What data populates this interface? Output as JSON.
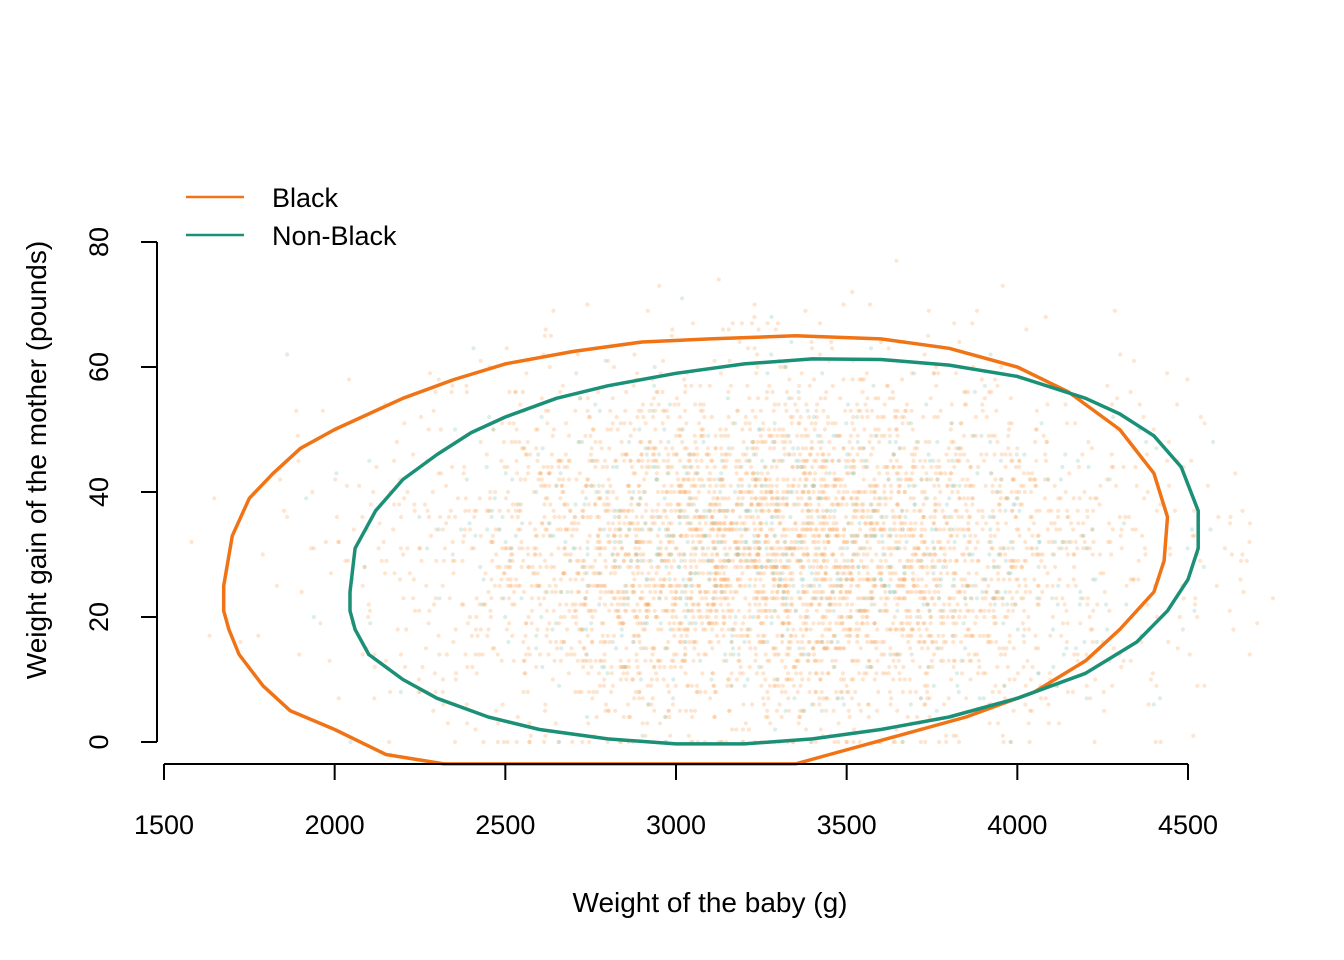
{
  "chart_data": {
    "type": "scatter",
    "title": "",
    "xlabel": "Weight of the baby (g)",
    "ylabel": "Weight gain of the mother (pounds)",
    "xlim": [
      1500,
      4500
    ],
    "ylim": [
      0,
      80
    ],
    "xticks": [
      1500,
      2000,
      2500,
      3000,
      3500,
      4000,
      4500
    ],
    "yticks": [
      0,
      20,
      40,
      60,
      80
    ],
    "grid": false,
    "legend_position": "top-left",
    "series": [
      {
        "name": "Black",
        "color": "#f07416",
        "point_color": "#fdae6b",
        "ellipse": {
          "center": [
            3065,
            30.5
          ],
          "points": [
            [
              1675,
              25
            ],
            [
              1700,
              33
            ],
            [
              1750,
              39
            ],
            [
              1820,
              43
            ],
            [
              1900,
              47
            ],
            [
              2000,
              50
            ],
            [
              2100,
              52.5
            ],
            [
              2200,
              55
            ],
            [
              2350,
              58
            ],
            [
              2500,
              60.5
            ],
            [
              2700,
              62.5
            ],
            [
              2900,
              64
            ],
            [
              3100,
              64.5
            ],
            [
              3350,
              65
            ],
            [
              3600,
              64.5
            ],
            [
              3800,
              63
            ],
            [
              4000,
              60
            ],
            [
              4150,
              56
            ],
            [
              4300,
              50
            ],
            [
              4400,
              43
            ],
            [
              4440,
              36
            ],
            [
              4430,
              29
            ],
            [
              4400,
              24
            ],
            [
              4300,
              18
            ],
            [
              4200,
              13
            ],
            [
              4050,
              8
            ],
            [
              3850,
              4
            ],
            [
              3650,
              1
            ],
            [
              3450,
              -2
            ],
            [
              3350,
              -3.5
            ],
            [
              2320,
              -3.5
            ],
            [
              2150,
              -2
            ],
            [
              2000,
              2
            ],
            [
              1870,
              5
            ],
            [
              1790,
              9
            ],
            [
              1720,
              14
            ],
            [
              1690,
              18
            ],
            [
              1675,
              21
            ]
          ]
        }
      },
      {
        "name": "Non-Black",
        "color": "#1b9077",
        "point_color": "#8fc9bb",
        "ellipse": {
          "center": [
            3290,
            30.5
          ],
          "points": [
            [
              2045,
              24
            ],
            [
              2060,
              31
            ],
            [
              2120,
              37
            ],
            [
              2200,
              42
            ],
            [
              2300,
              46
            ],
            [
              2400,
              49.5
            ],
            [
              2500,
              52
            ],
            [
              2650,
              55
            ],
            [
              2800,
              57
            ],
            [
              3000,
              59
            ],
            [
              3200,
              60.5
            ],
            [
              3400,
              61.3
            ],
            [
              3600,
              61.2
            ],
            [
              3800,
              60.3
            ],
            [
              4000,
              58.5
            ],
            [
              4200,
              55
            ],
            [
              4300,
              52.5
            ],
            [
              4400,
              49
            ],
            [
              4480,
              44
            ],
            [
              4530,
              37
            ],
            [
              4530,
              31
            ],
            [
              4500,
              26
            ],
            [
              4440,
              21
            ],
            [
              4350,
              16
            ],
            [
              4200,
              11
            ],
            [
              4000,
              7
            ],
            [
              3800,
              4
            ],
            [
              3600,
              2
            ],
            [
              3400,
              0.5
            ],
            [
              3200,
              -0.3
            ],
            [
              3000,
              -0.3
            ],
            [
              2800,
              0.5
            ],
            [
              2600,
              2
            ],
            [
              2450,
              4
            ],
            [
              2300,
              7
            ],
            [
              2200,
              10
            ],
            [
              2100,
              14
            ],
            [
              2060,
              18
            ],
            [
              2045,
              21
            ]
          ]
        }
      }
    ]
  }
}
